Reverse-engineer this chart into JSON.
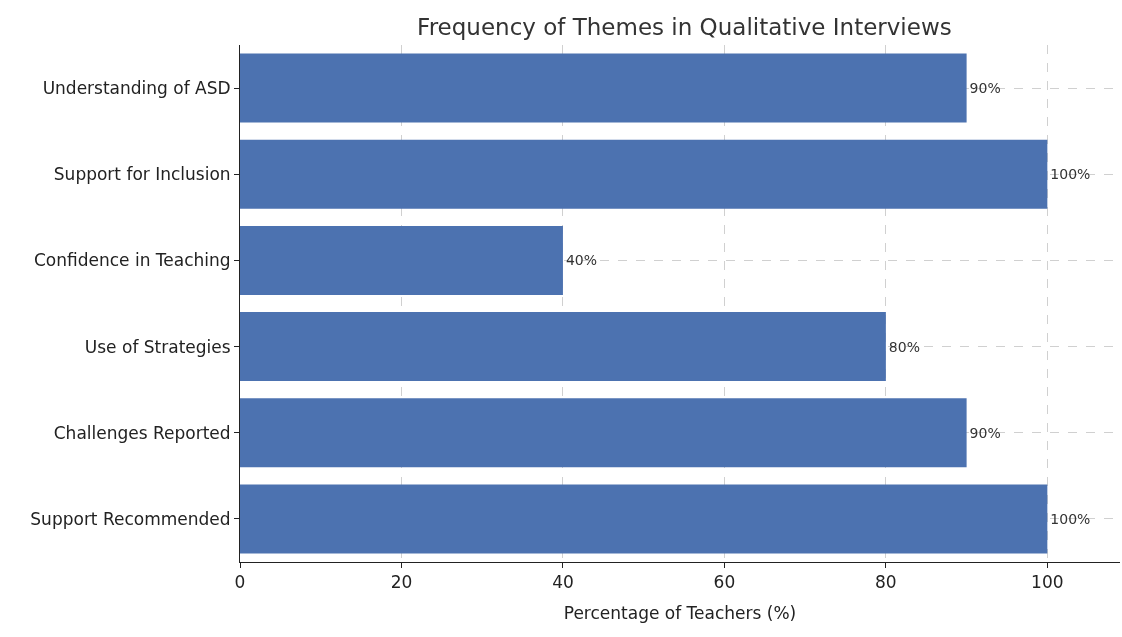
{
  "chart_data": {
    "type": "bar",
    "orientation": "horizontal",
    "title": "Frequency of Themes in Qualitative Interviews",
    "xlabel": "Percentage of Teachers (%)",
    "categories": [
      "Understanding of ASD",
      "Support for Inclusion",
      "Confidence in Teaching",
      "Use of Strategies",
      "Challenges Reported",
      "Support Recommended"
    ],
    "values": [
      90,
      100,
      40,
      80,
      90,
      100
    ],
    "value_labels": [
      "90%",
      "100%",
      "40%",
      "80%",
      "90%",
      "100%"
    ],
    "color": "#4c72b0",
    "xlim": [
      0,
      109
    ],
    "xticks": [
      0,
      20,
      40,
      60,
      80,
      100
    ],
    "grid": true,
    "line_style": "dashed"
  }
}
